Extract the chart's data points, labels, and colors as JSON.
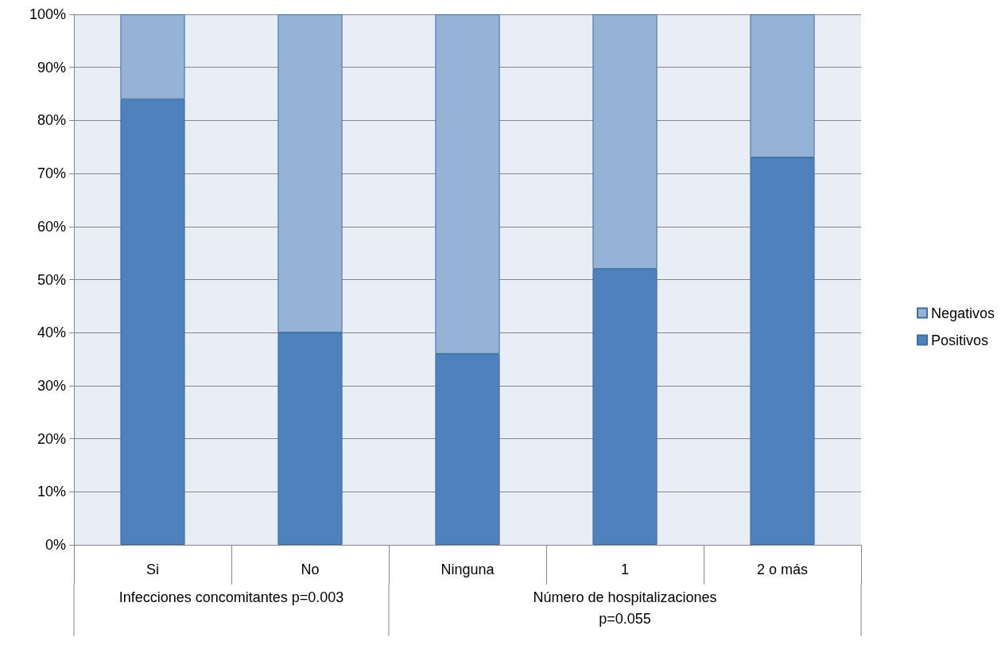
{
  "chart_data": {
    "type": "bar",
    "stacked": true,
    "categories": [
      "Si",
      "No",
      "Ninguna",
      "1",
      "2 o más"
    ],
    "series": [
      {
        "name": "Positivos",
        "color": "#4f81bd",
        "values": [
          84,
          40,
          36,
          52,
          73
        ]
      },
      {
        "name": "Negativos",
        "color": "#95b3d7",
        "values": [
          16,
          60,
          64,
          48,
          27
        ]
      }
    ],
    "ylim": [
      0,
      100
    ],
    "yticks": [
      {
        "value": 0,
        "label": "0%"
      },
      {
        "value": 10,
        "label": "10%"
      },
      {
        "value": 20,
        "label": "20%"
      },
      {
        "value": 30,
        "label": "30%"
      },
      {
        "value": 40,
        "label": "40%"
      },
      {
        "value": 50,
        "label": "50%"
      },
      {
        "value": 60,
        "label": "60%"
      },
      {
        "value": 70,
        "label": "70%"
      },
      {
        "value": 80,
        "label": "80%"
      },
      {
        "value": 90,
        "label": "90%"
      },
      {
        "value": 100,
        "label": "100%"
      }
    ],
    "grid": "y",
    "legend": "right",
    "annotations": [
      "Infecciones concomitantes p=0.003",
      "Número de hospitalizaciones\np=0.055"
    ]
  }
}
